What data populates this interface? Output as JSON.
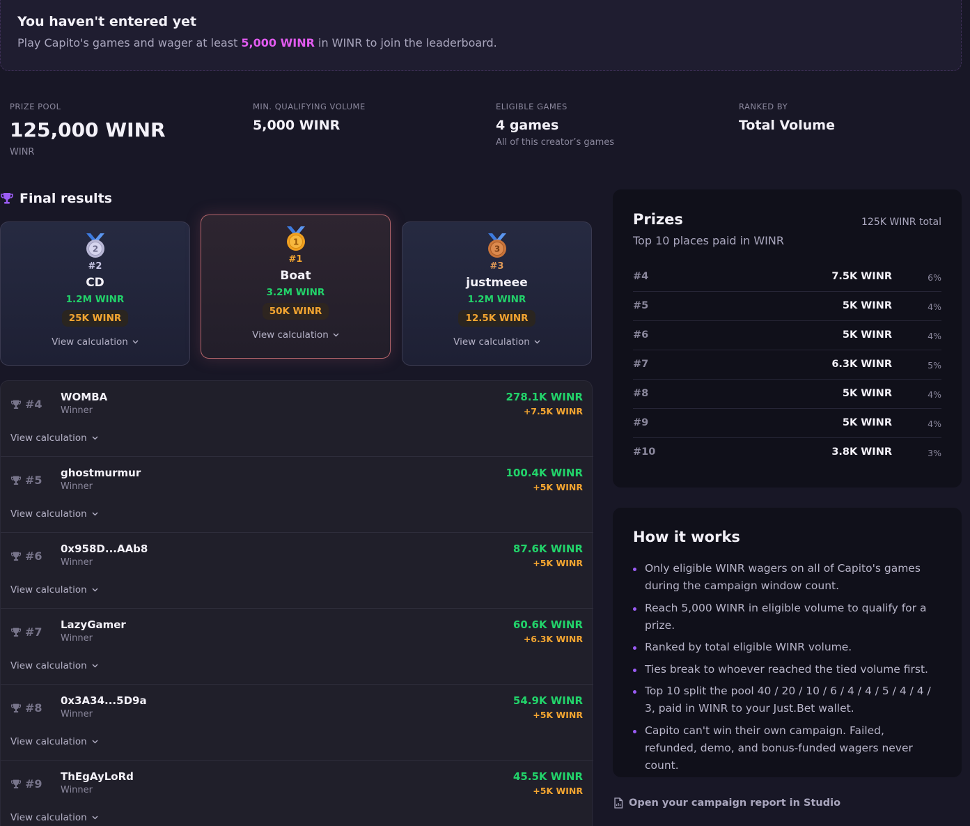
{
  "banner": {
    "title": "You haven't entered yet",
    "text_before": "Play Capito's games and wager at least ",
    "highlight": "5,000 WINR",
    "text_after": " in WINR to join the leaderboard."
  },
  "stats": [
    {
      "label": "PRIZE POOL",
      "value": "125,000 WINR",
      "sub": "WINR"
    },
    {
      "label": "MIN. QUALIFYING VOLUME",
      "value": "5,000 WINR",
      "sub": ""
    },
    {
      "label": "ELIGIBLE GAMES",
      "value": "4 games",
      "sub": "All of this creator’s games"
    },
    {
      "label": "RANKED BY",
      "value": "Total Volume",
      "sub": ""
    }
  ],
  "final_results_title": "Final results",
  "podium": [
    {
      "rank": "#2",
      "medal_number": "2",
      "name": "CD",
      "volume": "1.2M WINR",
      "prize": "25K WINR",
      "calc": "View calculation"
    },
    {
      "rank": "#1",
      "medal_number": "1",
      "name": "Boat",
      "volume": "3.2M WINR",
      "prize": "50K WINR",
      "calc": "View calculation"
    },
    {
      "rank": "#3",
      "medal_number": "3",
      "name": "justmeee",
      "volume": "1.2M WINR",
      "prize": "12.5K WINR",
      "calc": "View calculation"
    }
  ],
  "leaderboard": [
    {
      "rank": "#4",
      "name": "WOMBA",
      "status": "Winner",
      "volume": "278.1K WINR",
      "prize": "+7.5K WINR",
      "calc": "View calculation"
    },
    {
      "rank": "#5",
      "name": "ghostmurmur",
      "status": "Winner",
      "volume": "100.4K WINR",
      "prize": "+5K WINR",
      "calc": "View calculation"
    },
    {
      "rank": "#6",
      "name": "0x958D...AAb8",
      "status": "Winner",
      "volume": "87.6K WINR",
      "prize": "+5K WINR",
      "calc": "View calculation"
    },
    {
      "rank": "#7",
      "name": "LazyGamer",
      "status": "Winner",
      "volume": "60.6K WINR",
      "prize": "+6.3K WINR",
      "calc": "View calculation"
    },
    {
      "rank": "#8",
      "name": "0x3A34...5D9a",
      "status": "Winner",
      "volume": "54.9K WINR",
      "prize": "+5K WINR",
      "calc": "View calculation"
    },
    {
      "rank": "#9",
      "name": "ThEgAyLoRd",
      "status": "Winner",
      "volume": "45.5K WINR",
      "prize": "+5K WINR",
      "calc": "View calculation"
    }
  ],
  "prizes": {
    "title": "Prizes",
    "total": "125K WINR total",
    "subtitle": "Top 10 places paid in WINR",
    "rows": [
      {
        "rank": "#4",
        "amount": "7.5K WINR",
        "pct": "6%"
      },
      {
        "rank": "#5",
        "amount": "5K WINR",
        "pct": "4%"
      },
      {
        "rank": "#6",
        "amount": "5K WINR",
        "pct": "4%"
      },
      {
        "rank": "#7",
        "amount": "6.3K WINR",
        "pct": "5%"
      },
      {
        "rank": "#8",
        "amount": "5K WINR",
        "pct": "4%"
      },
      {
        "rank": "#9",
        "amount": "5K WINR",
        "pct": "4%"
      },
      {
        "rank": "#10",
        "amount": "3.8K WINR",
        "pct": "3%"
      }
    ]
  },
  "how_it_works": {
    "title": "How it works",
    "items": [
      "Only eligible WINR wagers on all of Capito's games during the campaign window count.",
      "Reach 5,000 WINR in eligible volume to qualify for a prize.",
      "Ranked by total eligible WINR volume.",
      "Ties break to whoever reached the tied volume first.",
      "Top 10 split the pool 40 / 20 / 10 / 6 / 4 / 4 / 5 / 4 / 4 / 3, paid in WINR to your Just.Bet wallet.",
      "Capito can't win their own campaign. Failed, refunded, demo, and bonus-funded wagers never count."
    ]
  },
  "studio_link": "Open your campaign report in Studio",
  "colors": {
    "background": "#181726",
    "accent_purple": "#9b5cf5",
    "highlight_pink": "#e25bf0",
    "volume_green": "#22d36a",
    "prize_orange": "#f3a531"
  },
  "icons": {
    "trophy": "trophy-icon",
    "medal": "medal-icon",
    "chevron": "chevron-down-icon",
    "document": "document-icon"
  }
}
